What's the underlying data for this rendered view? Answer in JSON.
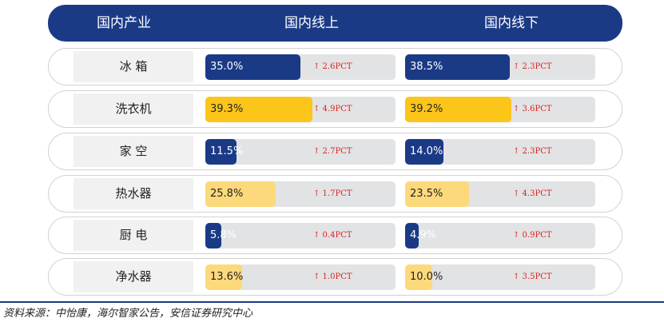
{
  "header": {
    "col1": "国内产业",
    "col2": "国内线上",
    "col3": "国内线下"
  },
  "chart_data": {
    "type": "bar",
    "categories": [
      "冰 箱",
      "洗衣机",
      "家 空",
      "热水器",
      "厨 电",
      "净水器"
    ],
    "series": [
      {
        "values": [
          35.0,
          39.3,
          11.5,
          25.8,
          5.8,
          13.6
        ],
        "labels": [
          "35.0%",
          "39.3%",
          "11.5%",
          "25.8%",
          "5.8%",
          "13.6%"
        ],
        "changes": [
          "↑ 2.6PCT",
          "↑ 4.9PCT",
          "↑ 2.7PCT",
          "↑ 1.7PCT",
          "↑ 0.4PCT",
          "↑ 1.0PCT"
        ]
      },
      {
        "values": [
          38.5,
          39.2,
          14.0,
          23.5,
          4.9,
          10.0
        ],
        "labels": [
          "38.5%",
          "39.2%",
          "14.0%",
          "23.5%",
          "4.9%",
          "10.0%"
        ],
        "changes": [
          "↑ 2.3PCT",
          "↑ 3.6PCT",
          "↑ 2.3PCT",
          "↑ 4.3PCT",
          "↑ 0.9PCT",
          "↑ 3.5PCT"
        ]
      }
    ],
    "xlim": [
      0,
      70
    ]
  },
  "colors": {
    "navy": "#1b3a86",
    "gold": "#fbc51a",
    "light_gold": "#fcd97b",
    "track": "#e2e3e5",
    "change": "#e02020",
    "row_fill_colors": [
      "#1b3a86",
      "#fbc51a",
      "#1b3a86",
      "#fcd97b",
      "#1b3a86",
      "#fcd97b"
    ]
  },
  "source": "资料来源：中怡康，海尔智家公告，安信证券研究中心"
}
